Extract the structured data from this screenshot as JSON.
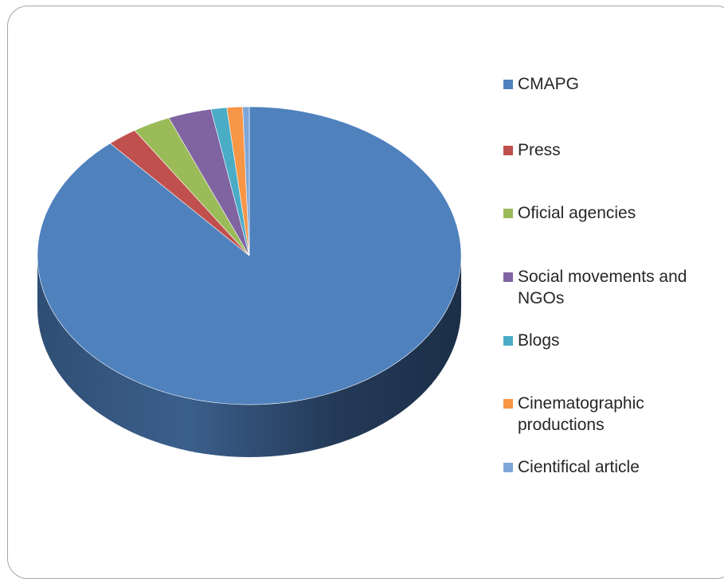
{
  "chart_data": {
    "type": "pie",
    "style": "3d",
    "title": "",
    "categories": [
      "CMAPG",
      "Press",
      "Oficial agencies",
      "Social movements and NGOs",
      "Blogs",
      "Cinematographic productions",
      "Cientifical article"
    ],
    "values": [
      88.6,
      2.3,
      2.9,
      3.3,
      1.2,
      1.2,
      0.5
    ],
    "colors": [
      "#4F81BD",
      "#C0504D",
      "#9BBB59",
      "#8064A2",
      "#4BACC6",
      "#F79646",
      "#7EA7D8"
    ],
    "legend_position": "right"
  },
  "legend": {
    "items": [
      {
        "label": "CMAPG"
      },
      {
        "label": "Press"
      },
      {
        "label": "Oficial agencies"
      },
      {
        "label": "Social movements and NGOs"
      },
      {
        "label": "Blogs"
      },
      {
        "label": "Cinematographic productions"
      },
      {
        "label": "Cientifical article"
      }
    ]
  }
}
